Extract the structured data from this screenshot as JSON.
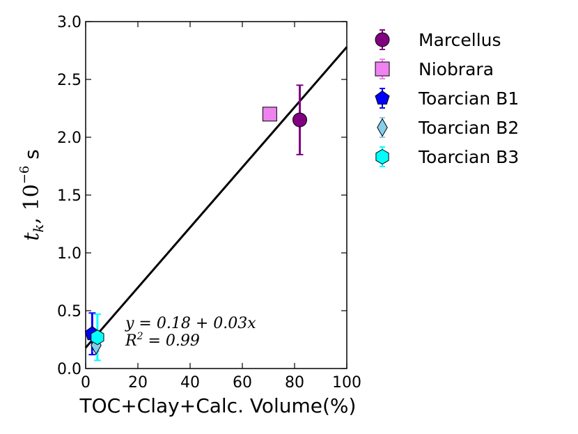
{
  "chart_data": {
    "type": "scatter",
    "xlabel": "TOC+Clay+Calc. Volume(%)",
    "ylabel": {
      "symbol": "t",
      "subscript": "k",
      "sep": ", ",
      "base": "10",
      "exponent": "−6",
      "unit": " s"
    },
    "xlim": [
      0,
      100
    ],
    "ylim": [
      0.0,
      3.0
    ],
    "xticks": [
      0,
      20,
      40,
      60,
      80,
      100
    ],
    "xtick_labels": [
      "0",
      "20",
      "40",
      "60",
      "80",
      "100"
    ],
    "yticks": [
      0.0,
      0.5,
      1.0,
      1.5,
      2.0,
      2.5,
      3.0
    ],
    "ytick_labels": [
      "0.0",
      "0.5",
      "1.0",
      "1.5",
      "2.0",
      "2.5",
      "3.0"
    ],
    "series": [
      {
        "name": "Marcellus",
        "marker": "circle",
        "color": "#800080",
        "x": 82,
        "y": 2.15,
        "yerr": 0.3
      },
      {
        "name": "Niobrara",
        "marker": "square",
        "color": "#EE82EE",
        "x": 70.5,
        "y": 2.2,
        "yerr": 0.04
      },
      {
        "name": "Toarcian B1",
        "marker": "pentagon",
        "color": "#0000FF",
        "x": 2.5,
        "y": 0.3,
        "yerr": 0.18
      },
      {
        "name": "Toarcian B2",
        "marker": "diamond",
        "color": "#87CEEB",
        "x": 4,
        "y": 0.2,
        "yerr": 0.05
      },
      {
        "name": "Toarcian B3",
        "marker": "hexagon",
        "color": "#00FFFF",
        "x": 4.5,
        "y": 0.27,
        "yerr": 0.2
      }
    ],
    "fit_line": {
      "intercept": 0.18,
      "slope": 0.026,
      "x_range": [
        0,
        100
      ],
      "color": "#000000"
    },
    "annotation": {
      "line1": "y = 0.18 + 0.03x",
      "line2_main": "R",
      "line2_sup": "2",
      "line2_tail": " = 0.99"
    },
    "legend_position": "outside-right"
  }
}
